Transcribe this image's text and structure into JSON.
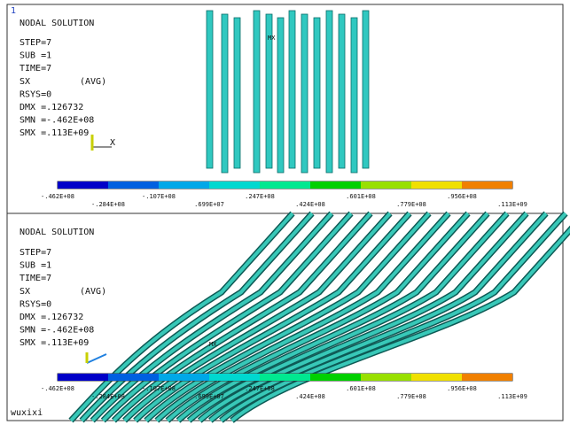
{
  "panels": [
    {
      "number": "1",
      "lines": [
        "NODAL SOLUTION",
        "STEP=7",
        "SUB =1",
        "TIME=7",
        "SX",
        "RSYS=0",
        "DMX =.126732",
        "SMN =-.462E+08",
        "SMX =.113E+09"
      ],
      "avg": "(AVG)",
      "max_marker": "MX",
      "axis": "X",
      "legend": [
        "-.462E+08",
        "-.284E+08",
        "-.107E+08",
        ".699E+07",
        ".247E+08",
        ".424E+08",
        ".601E+08",
        ".779E+08",
        ".956E+08",
        ".113E+09"
      ]
    },
    {
      "lines": [
        "NODAL SOLUTION",
        "STEP=7",
        "SUB =1",
        "TIME=7",
        "SX",
        "RSYS=0",
        "DMX =.126732",
        "SMN =-.462E+08",
        "SMX =.113E+09"
      ],
      "avg": "(AVG)",
      "max_marker": "MX",
      "legend": [
        "-.462E+08",
        "-.284E+08",
        "-.107E+08",
        ".699E+07",
        ".247E+08",
        ".424E+08",
        ".601E+08",
        ".779E+08",
        ".956E+08",
        ".113E+09"
      ],
      "user": "wuxixi"
    }
  ],
  "legend_colors": [
    "#0000c8",
    "#0060e0",
    "#00a8e8",
    "#00d8d0",
    "#00e890",
    "#00d000",
    "#98e000",
    "#f0e000",
    "#f08000",
    "#e00000"
  ]
}
